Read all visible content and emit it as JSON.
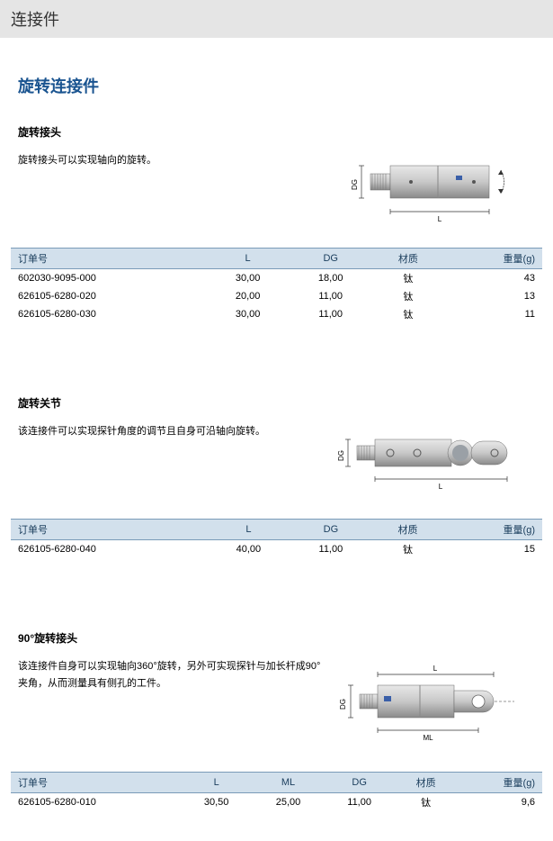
{
  "page_title": "连接件",
  "section_title": "旋转连接件",
  "sections": [
    {
      "title": "旋转接头",
      "description": "旋转接头可以实现轴向的旋转。",
      "diagram": "rotary_coupling",
      "columns": [
        "订单号",
        "L",
        "DG",
        "材质",
        "重量(g)"
      ],
      "rows": [
        [
          "602030-9095-000",
          "30,00",
          "18,00",
          "钛",
          "43"
        ],
        [
          "626105-6280-020",
          "20,00",
          "11,00",
          "钛",
          "13"
        ],
        [
          "626105-6280-030",
          "30,00",
          "11,00",
          "钛",
          "11"
        ]
      ]
    },
    {
      "title": "旋转关节",
      "description": "该连接件可以实现探针角度的调节且自身可沿轴向旋转。",
      "diagram": "rotary_joint",
      "columns": [
        "订单号",
        "L",
        "DG",
        "材质",
        "重量(g)"
      ],
      "rows": [
        [
          "626105-6280-040",
          "40,00",
          "11,00",
          "钛",
          "15"
        ]
      ]
    },
    {
      "title": "90°旋转接头",
      "description": "该连接件自身可以实现轴向360°旋转，另外可实现探针与加长杆成90°夹角，从而测量具有侧孔的工件。",
      "diagram": "rotary_90",
      "columns": [
        "订单号",
        "L",
        "ML",
        "DG",
        "材质",
        "重量(g)"
      ],
      "rows": [
        [
          "626105-6280-010",
          "30,50",
          "25,00",
          "11,00",
          "钛",
          "9,6"
        ]
      ]
    }
  ],
  "colors": {
    "header_bg": "#e5e5e5",
    "section_title": "#1a5490",
    "table_header_bg": "#d2e0ec",
    "table_border": "#7a9bb8",
    "metal_light": "#c8c8c8",
    "metal_dark": "#8a8a8a",
    "dim_line": "#333333"
  }
}
